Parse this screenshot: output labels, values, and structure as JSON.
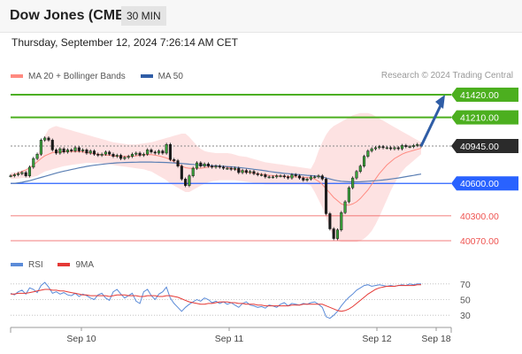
{
  "header": {
    "title": "Dow Jones (CME)",
    "timeframe": "30 MIN",
    "datetime": "Thursday, September 12, 2024 7:26:14 AM CET"
  },
  "legend": {
    "ma20_label": "MA 20 + Bollinger Bands",
    "ma50_label": "MA 50",
    "rsi_label": "RSI",
    "ma9_label": "9MA",
    "copyright": "Research © 2024 Trading Central"
  },
  "colors": {
    "green": "#4caf1f",
    "blue": "#2962ff",
    "red": "#ef5350",
    "band": "#fde2e2",
    "ma20": "#ff8a80",
    "ma50": "#5b7fb4",
    "candle": "#1a1a1a",
    "candle_up": "#3aa33a",
    "arrow": "#2f5da6",
    "rsi": "#5b8bd8",
    "rsi_ma": "#e53935",
    "current": "#2b2b2b"
  },
  "chart_data": [
    {
      "type": "candlestick",
      "title": "Dow Jones (CME)",
      "timeframe": "30 MIN",
      "x_labels": [
        "Sep 10",
        "Sep 11",
        "Sep 12",
        "Sep 18"
      ],
      "y_range": [
        39920,
        41490
      ],
      "levels": [
        {
          "value": 41420,
          "label": "41420.00",
          "kind": "resistance"
        },
        {
          "value": 41210,
          "label": "41210.00",
          "kind": "resistance"
        },
        {
          "value": 40945,
          "label": "40945.00",
          "kind": "current"
        },
        {
          "value": 40600,
          "label": "40600.00",
          "kind": "pivot"
        },
        {
          "value": 40300,
          "label": "40300.00",
          "kind": "support"
        },
        {
          "value": 40070,
          "label": "40070.00",
          "kind": "support"
        }
      ],
      "close": [
        40670,
        40680,
        40690,
        40700,
        40670,
        40750,
        40830,
        40870,
        41000,
        41020,
        41000,
        40910,
        40880,
        40920,
        40890,
        40910,
        40900,
        40930,
        40900,
        40910,
        40880,
        40900,
        40870,
        40860,
        40870,
        40890,
        40870,
        40850,
        40860,
        40830,
        40840,
        40850,
        40870,
        40880,
        40860,
        40870,
        40910,
        40890,
        40880,
        40900,
        40880,
        40960,
        40820,
        40810,
        40760,
        40640,
        40580,
        40670,
        40740,
        40790,
        40760,
        40780,
        40760,
        40750,
        40760,
        40750,
        40740,
        40740,
        40730,
        40740,
        40700,
        40720,
        40700,
        40710,
        40690,
        40680,
        40680,
        40660,
        40660,
        40660,
        40670,
        40670,
        40660,
        40650,
        40680,
        40670,
        40650,
        40630,
        40640,
        40660,
        40660,
        40670,
        40640,
        40320,
        40180,
        40090,
        40170,
        40330,
        40430,
        40560,
        40650,
        40710,
        40760,
        40850,
        40900,
        40920,
        40930,
        40940,
        40930,
        40930,
        40920,
        40930,
        40920,
        40950,
        40940,
        40940,
        40950,
        40960,
        40945
      ],
      "ma20": [
        40670,
        40680,
        40695,
        40710,
        40725,
        40745,
        40770,
        40800,
        40830,
        40855,
        40870,
        40885,
        40890,
        40890,
        40895,
        40895,
        40895,
        40895,
        40895,
        40890,
        40885,
        40880,
        40875,
        40870,
        40865,
        40860,
        40860,
        40855,
        40850,
        40850,
        40850,
        40850,
        40850,
        40855,
        40860,
        40865,
        40865,
        40865,
        40860,
        40855,
        40845,
        40835,
        40820,
        40800,
        40780,
        40760,
        40745,
        40740,
        40740,
        40740,
        40740,
        40745,
        40750,
        40755,
        40760,
        40760,
        40755,
        40750,
        40740,
        40730,
        40720,
        40712,
        40705,
        40700,
        40695,
        40690,
        40685,
        40680,
        40675,
        40672,
        40670,
        40668,
        40666,
        40664,
        40662,
        40660,
        40658,
        40656,
        40654,
        40650,
        40640,
        40620,
        40590,
        40550,
        40510,
        40470,
        40440,
        40410,
        40400,
        40400,
        40410,
        40430,
        40460,
        40500,
        40540,
        40590,
        40640,
        40690,
        40730,
        40770,
        40800,
        40830,
        40850,
        40870,
        40885,
        40895,
        40905,
        40915,
        40925
      ],
      "ma50": [
        40600,
        40600,
        40605,
        40610,
        40618,
        40625,
        40635,
        40645,
        40655,
        40665,
        40675,
        40685,
        40695,
        40705,
        40713,
        40720,
        40728,
        40735,
        40743,
        40750,
        40757,
        40763,
        40768,
        40772,
        40776,
        40780,
        40784,
        40787,
        40790,
        40792,
        40793,
        40794,
        40795,
        40796,
        40797,
        40797,
        40797,
        40797,
        40796,
        40795,
        40794,
        40793,
        40791,
        40789,
        40787,
        40784,
        40781,
        40778,
        40775,
        40772,
        40770,
        40768,
        40766,
        40764,
        40762,
        40760,
        40758,
        40756,
        40753,
        40750,
        40747,
        40743,
        40739,
        40735,
        40730,
        40726,
        40721,
        40716,
        40711,
        40706,
        40701,
        40697,
        40693,
        40690,
        40687,
        40684,
        40681,
        40678,
        40675,
        40672,
        40670,
        40665,
        40658,
        40650,
        40641,
        40632,
        40625,
        40620,
        40617,
        40615,
        40614,
        40614,
        40615,
        40617,
        40620,
        40622,
        40625,
        40628,
        40631,
        40635,
        40640,
        40645,
        40650,
        40656,
        40662,
        40668,
        40674,
        40680,
        40686
      ],
      "bb_upper": [
        40700,
        40700,
        40710,
        40720,
        40730,
        40740,
        40760,
        40850,
        40950,
        41040,
        41100,
        41120,
        41130,
        41120,
        41110,
        41100,
        41090,
        41080,
        41070,
        41060,
        41050,
        41040,
        41030,
        41020,
        41010,
        41000,
        40990,
        40980,
        40975,
        40970,
        40965,
        40960,
        40960,
        40960,
        40965,
        40970,
        40975,
        40980,
        40990,
        41000,
        41010,
        41020,
        41030,
        41040,
        41050,
        41060,
        41060,
        41030,
        40990,
        40950,
        40920,
        40900,
        40890,
        40885,
        40880,
        40880,
        40880,
        40880,
        40875,
        40865,
        40855,
        40850,
        40845,
        40835,
        40825,
        40815,
        40805,
        40795,
        40790,
        40785,
        40780,
        40775,
        40770,
        40765,
        40760,
        40755,
        40750,
        40745,
        40740,
        40735,
        40800,
        40900,
        40980,
        41050,
        41100,
        41130,
        41150,
        41170,
        41190,
        41210,
        41230,
        41240,
        41250,
        41250,
        41250,
        41240,
        41220,
        41200,
        41180,
        41160,
        41140,
        41120,
        41100,
        41080,
        41060,
        41040,
        41020,
        41000,
        40980
      ],
      "bb_lower": [
        40640,
        40640,
        40645,
        40650,
        40650,
        40650,
        40660,
        40670,
        40690,
        40710,
        40720,
        40730,
        40740,
        40750,
        40760,
        40765,
        40770,
        40775,
        40780,
        40785,
        40790,
        40790,
        40790,
        40790,
        40785,
        40780,
        40775,
        40770,
        40765,
        40760,
        40755,
        40750,
        40745,
        40740,
        40735,
        40730,
        40720,
        40710,
        40690,
        40670,
        40650,
        40630,
        40600,
        40580,
        40560,
        40540,
        40520,
        40520,
        40540,
        40560,
        40580,
        40595,
        40610,
        40620,
        40625,
        40630,
        40630,
        40630,
        40630,
        40630,
        40625,
        40620,
        40615,
        40610,
        40605,
        40600,
        40595,
        40590,
        40590,
        40590,
        40590,
        40590,
        40590,
        40590,
        40590,
        40590,
        40590,
        40590,
        40590,
        40580,
        40520,
        40450,
        40380,
        40280,
        40180,
        40100,
        40070,
        40060,
        40060,
        40060,
        40060,
        40060,
        40070,
        40090,
        40120,
        40160,
        40220,
        40290,
        40370,
        40450,
        40530,
        40600,
        40660,
        40710,
        40750,
        40780,
        40810,
        40840,
        40870
      ],
      "projection": {
        "from": 40945,
        "to": 41420
      }
    },
    {
      "type": "line",
      "title": "RSI",
      "series": [
        {
          "name": "RSI",
          "values": [
            58,
            56,
            60,
            62,
            57,
            65,
            63,
            59,
            68,
            72,
            66,
            58,
            60,
            57,
            59,
            56,
            55,
            58,
            54,
            57,
            55,
            52,
            50,
            56,
            58,
            52,
            49,
            60,
            63,
            57,
            52,
            55,
            58,
            48,
            45,
            60,
            63,
            55,
            50,
            57,
            60,
            66,
            52,
            45,
            40,
            35,
            40,
            44,
            47,
            50,
            48,
            52,
            50,
            46,
            48,
            45,
            47,
            44,
            46,
            43,
            40,
            45,
            47,
            43,
            42,
            40,
            41,
            39,
            43,
            42,
            40,
            44,
            46,
            42,
            45,
            44,
            43,
            45,
            44,
            46,
            47,
            44,
            40,
            28,
            26,
            30,
            35,
            42,
            48,
            53,
            57,
            62,
            65,
            68,
            69,
            67,
            68,
            69,
            68,
            67,
            68,
            67,
            68,
            69,
            68,
            70,
            69,
            70,
            70
          ]
        },
        {
          "name": "9MA",
          "values": [
            57,
            57,
            58,
            58,
            58,
            59,
            60,
            61,
            62,
            63,
            63,
            62,
            62,
            61,
            61,
            60,
            59,
            58,
            57,
            56,
            56,
            55,
            55,
            55,
            55,
            55,
            54,
            55,
            56,
            56,
            56,
            55,
            55,
            55,
            54,
            54,
            55,
            55,
            55,
            54,
            54,
            55,
            55,
            54,
            53,
            51,
            49,
            47,
            46,
            45,
            44,
            44,
            45,
            45,
            46,
            47,
            47,
            47,
            46,
            46,
            45,
            45,
            44,
            44,
            44,
            43,
            43,
            42,
            42,
            42,
            42,
            42,
            42,
            42,
            43,
            43,
            43,
            44,
            44,
            44,
            44,
            44,
            44,
            42,
            40,
            38,
            36,
            35,
            36,
            38,
            41,
            45,
            49,
            53,
            57,
            60,
            63,
            65,
            66,
            67,
            67,
            67,
            68,
            68,
            68,
            68,
            68,
            69,
            69
          ]
        }
      ],
      "y_ticks": [
        30,
        50,
        70
      ],
      "y_range": [
        20,
        80
      ]
    }
  ]
}
